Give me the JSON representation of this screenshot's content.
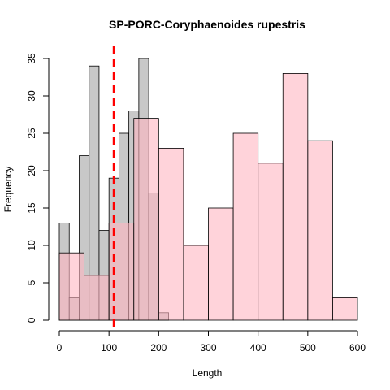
{
  "chart_data": {
    "type": "bar",
    "title": "SP-PORC-Coryphaenoides rupestris",
    "xlabel": "Length",
    "ylabel": "Frequency",
    "xlim": [
      0,
      600
    ],
    "ylim": [
      0,
      35
    ],
    "x_ticks": [
      0,
      100,
      200,
      300,
      400,
      500,
      600
    ],
    "y_ticks": [
      0,
      5,
      10,
      15,
      20,
      25,
      30,
      35
    ],
    "x_tick_labels": [
      "0",
      "100",
      "200",
      "300",
      "400",
      "500",
      "600"
    ],
    "y_tick_labels": [
      "0",
      "5",
      "10",
      "15",
      "20",
      "25",
      "30",
      "35"
    ],
    "grid": false,
    "series": [
      {
        "fill": "#bebebe",
        "opacity": 0.85,
        "bins": [
          {
            "x0": 0,
            "x1": 20,
            "count": 13
          },
          {
            "x0": 20,
            "x1": 40,
            "count": 3
          },
          {
            "x0": 40,
            "x1": 60,
            "count": 22
          },
          {
            "x0": 60,
            "x1": 80,
            "count": 34
          },
          {
            "x0": 80,
            "x1": 100,
            "count": 12
          },
          {
            "x0": 100,
            "x1": 120,
            "count": 19
          },
          {
            "x0": 120,
            "x1": 140,
            "count": 25
          },
          {
            "x0": 140,
            "x1": 160,
            "count": 28
          },
          {
            "x0": 160,
            "x1": 180,
            "count": 35
          },
          {
            "x0": 180,
            "x1": 200,
            "count": 17
          },
          {
            "x0": 200,
            "x1": 220,
            "count": 1
          }
        ]
      },
      {
        "fill": "#ffb6c1",
        "opacity": 0.6,
        "bins": [
          {
            "x0": 0,
            "x1": 50,
            "count": 9
          },
          {
            "x0": 50,
            "x1": 100,
            "count": 6
          },
          {
            "x0": 100,
            "x1": 150,
            "count": 13
          },
          {
            "x0": 150,
            "x1": 200,
            "count": 27
          },
          {
            "x0": 200,
            "x1": 250,
            "count": 23
          },
          {
            "x0": 250,
            "x1": 300,
            "count": 10
          },
          {
            "x0": 300,
            "x1": 350,
            "count": 15
          },
          {
            "x0": 350,
            "x1": 400,
            "count": 25
          },
          {
            "x0": 400,
            "x1": 450,
            "count": 21
          },
          {
            "x0": 450,
            "x1": 500,
            "count": 33
          },
          {
            "x0": 500,
            "x1": 550,
            "count": 24
          },
          {
            "x0": 550,
            "x1": 600,
            "count": 3
          }
        ]
      }
    ],
    "reference_line": {
      "x": 110,
      "color": "#ff0000",
      "style": "dashed"
    }
  }
}
